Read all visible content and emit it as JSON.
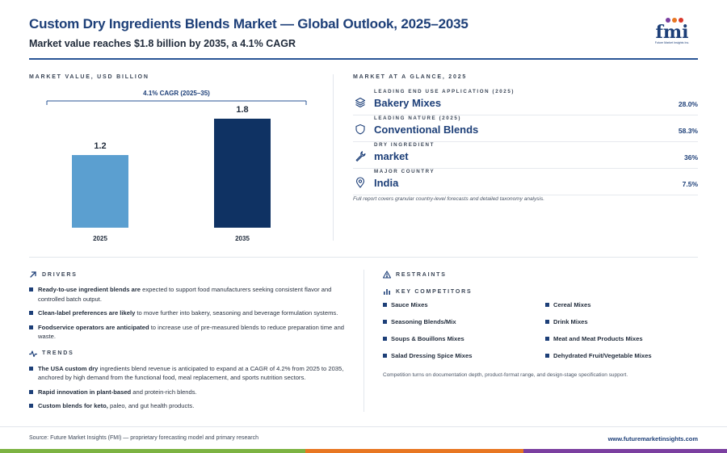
{
  "header": {
    "title": "Custom Dry Ingredients Blends Market — Global Outlook, 2025–2035",
    "subtitle": "Market value reaches $1.8 billion by 2035, a 4.1% CAGR"
  },
  "logo": {
    "mark": "fmi",
    "tagline": "Future Market Insights Inc."
  },
  "chart_section": {
    "label": "MARKET VALUE, USD BILLION"
  },
  "chart_data": {
    "type": "bar",
    "categories": [
      "2025",
      "2035"
    ],
    "values": [
      1.2,
      1.8
    ],
    "data_labels": [
      "1.2",
      "1.8"
    ],
    "colors": [
      "#5b9fd0",
      "#0f3263"
    ],
    "annotation": "4.1% CAGR (2025–35)",
    "ylim": [
      0,
      2.0
    ],
    "grid": false,
    "title": "",
    "xlabel": "",
    "ylabel": ""
  },
  "glance": {
    "label": "MARKET AT A GLANCE, 2025",
    "rows": [
      {
        "icon": "layers-icon",
        "category": "LEADING END USE APPLICATION (2025)",
        "value": "Bakery Mixes",
        "pct": "28.0%"
      },
      {
        "icon": "shield-icon",
        "category": "LEADING NATURE (2025)",
        "value": "Conventional Blends",
        "pct": "58.3%"
      },
      {
        "icon": "wrench-icon",
        "category": "DRY INGREDIENT",
        "value": "market",
        "pct": "36%"
      },
      {
        "icon": "map-pin-icon",
        "category": "MAJOR COUNTRY",
        "value": "India",
        "pct": "7.5%"
      }
    ],
    "note": "Full report covers granular country-level forecasts and detailed taxonomy analysis."
  },
  "drivers": {
    "label": "DRIVERS",
    "items": [
      {
        "bold": "Ready-to-use ingredient blends are",
        "text": " expected to support food manufacturers seeking consistent flavor and controlled batch output."
      },
      {
        "bold": "Clean-label preferences are likely",
        "text": " to move further into bakery, seasoning and beverage formulation systems."
      },
      {
        "bold": "Foodservice operators are anticipated",
        "text": " to increase use of pre-measured blends to reduce preparation time and waste."
      }
    ]
  },
  "trends": {
    "label": "TRENDS",
    "items": [
      {
        "bold": "The USA custom dry",
        "text": " ingredients blend revenue is anticipated to expand at a CAGR of 4.2% from 2025 to 2035, anchored by high demand from the functional food, meal replacement, and sports nutrition sectors."
      },
      {
        "bold": "Rapid innovation in plant-based",
        "text": " and protein-rich blends."
      },
      {
        "bold": "Custom blends for keto,",
        "text": " paleo, and gut health products."
      }
    ]
  },
  "restraints": {
    "label": "RESTRAINTS"
  },
  "competitors": {
    "label": "KEY COMPETITORS",
    "items": [
      "Sauce Mixes",
      "Cereal Mixes",
      "Seasoning Blends/Mix",
      "Drink Mixes",
      "Soups & Bouillons Mixes",
      "Meat and Meat Products Mixes",
      "Salad Dressing Spice Mixes",
      "Dehydrated Fruit/Vegetable Mixes"
    ],
    "note": "Competition turns on documentation depth, product-format range, and design-stage specification support."
  },
  "footer": {
    "source": "Source: Future Market Insights (FMI) — proprietary forecasting model and primary research",
    "site": "www.futuremarketinsights.com"
  },
  "colors": {
    "brand": "#1d3f78",
    "bar_2025": "#5b9fd0",
    "bar_2035": "#0f3263",
    "strip": [
      "#7cb342",
      "#e87722",
      "#7b3fa0",
      "#1d3f78"
    ]
  }
}
